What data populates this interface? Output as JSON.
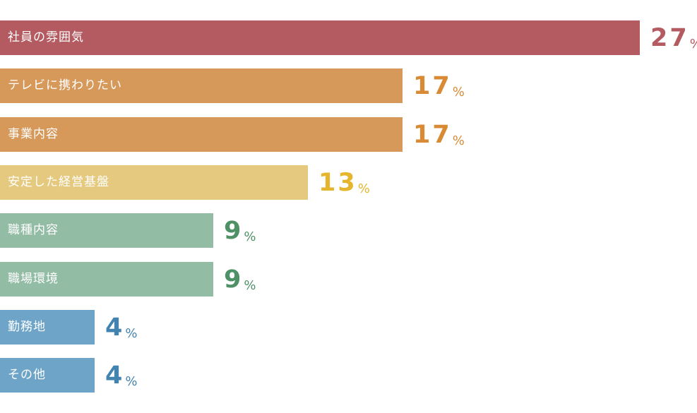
{
  "chart_data": {
    "type": "bar",
    "orientation": "horizontal",
    "title": "",
    "xlabel": "",
    "ylabel": "",
    "unit": "%",
    "xlim": [
      0,
      30
    ],
    "categories": [
      "社員の雰囲気",
      "テレビに携わりたい",
      "事業内容",
      "安定した経営基盤",
      "職種内容",
      "職場環境",
      "勤務地",
      "その他"
    ],
    "values": [
      27,
      17,
      17,
      13,
      9,
      9,
      4,
      4
    ],
    "bar_colors": [
      "#b35b60",
      "#d6995a",
      "#d6995a",
      "#e4c97e",
      "#93bca4",
      "#93bca4",
      "#6ea4c8",
      "#6ea4c8"
    ],
    "value_colors": [
      "#b35b60",
      "#d98a35",
      "#d98a35",
      "#e6b52e",
      "#4f9167",
      "#4f9167",
      "#4383af",
      "#4383af"
    ]
  }
}
